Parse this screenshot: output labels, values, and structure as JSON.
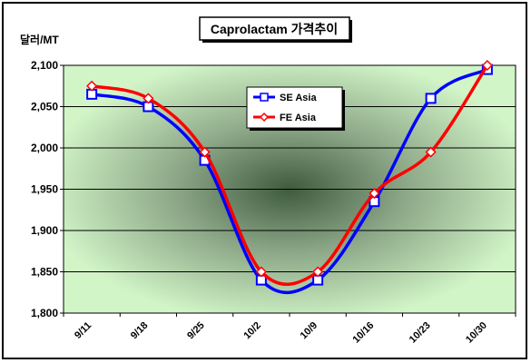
{
  "chart_data": {
    "type": "line",
    "title": "Caprolactam 가격추이",
    "ylabel": "달러/MT",
    "xlabel": "",
    "categories": [
      "9/11",
      "9/18",
      "9/25",
      "10/2",
      "10/9",
      "10/16",
      "10/23",
      "10/30"
    ],
    "ylim": [
      1800,
      2100
    ],
    "yticks": [
      "1,800",
      "1,850",
      "1,900",
      "1,950",
      "2,000",
      "2,050",
      "2,100"
    ],
    "grid": true,
    "legend_position": "upper-middle",
    "series": [
      {
        "name": "SE Asia",
        "color": "#0000ff",
        "marker": "square",
        "values": [
          2065,
          2050,
          1985,
          1840,
          1840,
          1935,
          2060,
          2095
        ]
      },
      {
        "name": "FE Asia",
        "color": "#ff0000",
        "marker": "diamond",
        "values": [
          2075,
          2060,
          1995,
          1850,
          1850,
          1945,
          1995,
          2100
        ]
      }
    ]
  }
}
